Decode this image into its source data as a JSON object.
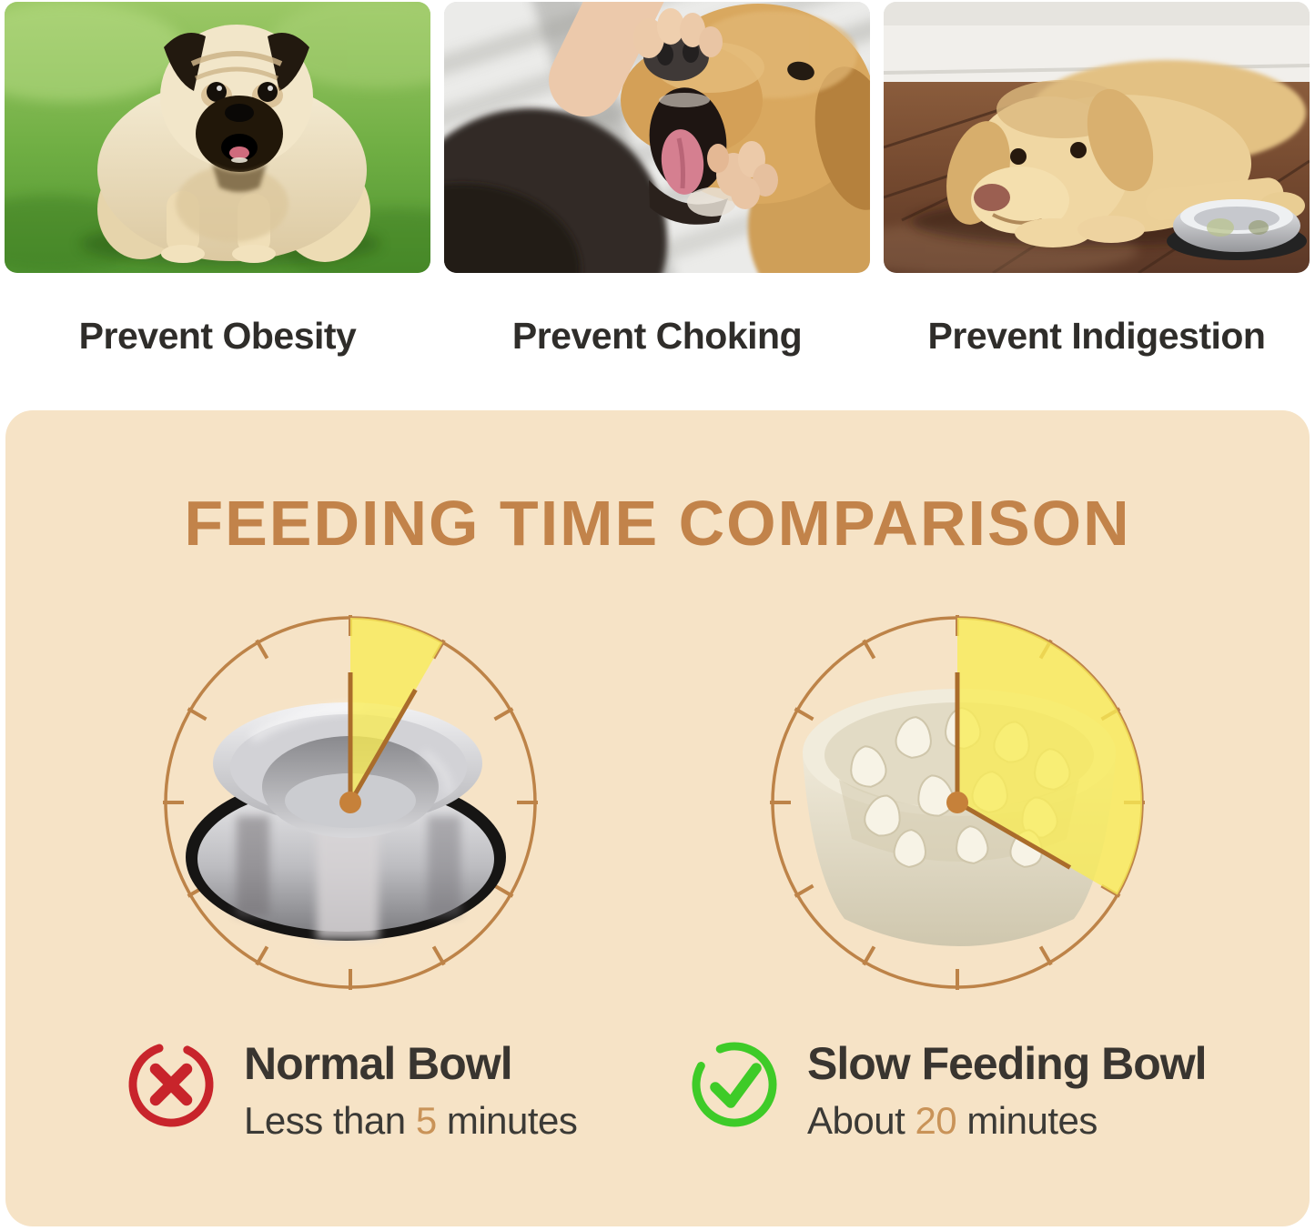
{
  "page": {
    "background": "#ffffff"
  },
  "benefit_cards": [
    {
      "caption": "Prevent Obesity",
      "photo": "overweight-pug-standing-on-grass"
    },
    {
      "caption": "Prevent Choking",
      "photo": "owner-checking-golden-retrievers-open-mouth"
    },
    {
      "caption": "Prevent Indigestion",
      "photo": "labrador-lying-on-wood-floor-beside-steel-bowl"
    }
  ],
  "comparison_panel": {
    "title": "FEEDING TIME COMPARISON",
    "title_color": "#c2834a",
    "background_color": "#f6e3c6",
    "clock_style": {
      "ring_color": "#bd8348",
      "hand_color": "#aa6c2b",
      "center_dot_color": "#c6813a",
      "wedge_color": "#f8ec55",
      "wedge_opacity": 0.78,
      "radius": 203,
      "hand_length": 143
    },
    "clocks": [
      {
        "bowl": "normal-steel-bowl",
        "minutes": 5
      },
      {
        "bowl": "slow-feeding-bowl",
        "minutes": 20
      }
    ],
    "results": [
      {
        "icon": "cross-icon",
        "icon_color": "#c8242b",
        "name": "Normal Bowl",
        "time_prefix": "Less than ",
        "time_value": "5",
        "time_suffix": " minutes"
      },
      {
        "icon": "check-icon",
        "icon_color": "#3ecb28",
        "name": "Slow Feeding Bowl",
        "time_prefix": "About ",
        "time_value": "20",
        "time_suffix": " minutes"
      }
    ],
    "accent_number_color": "#c99358",
    "text_color": "#393530"
  }
}
